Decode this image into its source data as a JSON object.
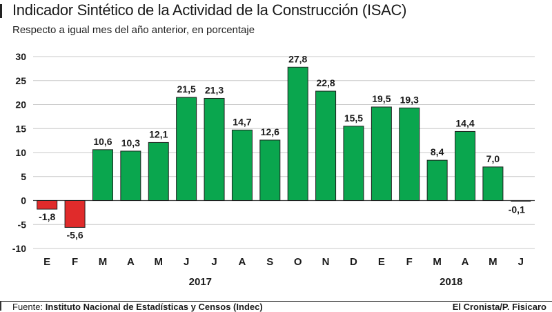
{
  "chart_data": {
    "type": "bar",
    "title": "Indicador Sintético de la Actividad de la Construcción (ISAC)",
    "subtitle": "Respecto a igual mes del año anterior, en porcentaje",
    "categories": [
      "E",
      "F",
      "M",
      "A",
      "M",
      "J",
      "J",
      "A",
      "S",
      "O",
      "N",
      "D",
      "E",
      "F",
      "M",
      "A",
      "M",
      "J"
    ],
    "values": [
      -1.8,
      -5.6,
      10.6,
      10.3,
      12.1,
      21.5,
      21.3,
      14.7,
      12.6,
      27.8,
      22.8,
      15.5,
      19.5,
      19.3,
      8.4,
      14.4,
      7.0,
      -0.1
    ],
    "value_labels": [
      "-1,8",
      "-5,6",
      "10,6",
      "10,3",
      "12,1",
      "21,5",
      "21,3",
      "14,7",
      "12,6",
      "27,8",
      "22,8",
      "15,5",
      "19,5",
      "19,3",
      "8,4",
      "14,4",
      "7,0",
      "-0,1"
    ],
    "year_groups": [
      {
        "label": "2017",
        "first": 0,
        "last": 11
      },
      {
        "label": "2018",
        "first": 12,
        "last": 17
      }
    ],
    "yticks": [
      30,
      25,
      20,
      15,
      10,
      5,
      0,
      -5,
      -10
    ],
    "ylim": [
      -10,
      30
    ],
    "grid": true,
    "colors": {
      "positive": "#0aa64e",
      "negative": "#e02b2b",
      "grid": "#c8c8c8",
      "edge": "#1f1f1f"
    }
  },
  "footer": {
    "source_prefix": "Fuente: ",
    "source_name": "Instituto Nacional de Estadísticas y Censos (Indec)",
    "credit": "El Cronista/P. Fisicaro"
  }
}
